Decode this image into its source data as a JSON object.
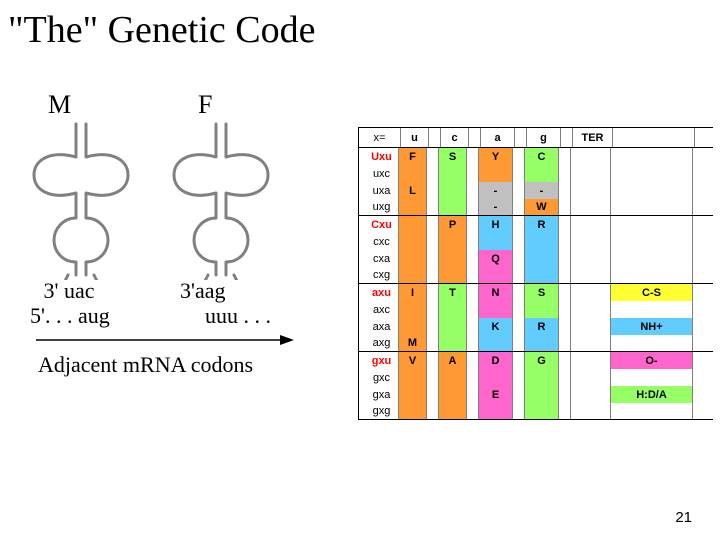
{
  "title": "\"The\" Genetic Code",
  "page_number": "21",
  "left": {
    "label_M": "M",
    "label_F": "F",
    "anticodon1_line1": " 3' uac",
    "anticodon1_line2": "5'. . . aug",
    "anticodon2_line1": "3'aag",
    "anticodon2_line2": "uuu . . .",
    "caption": "Adjacent mRNA codons",
    "trna_stroke": "#808080",
    "trna_stroke_width": 3
  },
  "table": {
    "font_family": "Arial",
    "font_size_pt": 8,
    "border_color": "#000000",
    "cell_border_color": "#7f7f7f",
    "colors": {
      "orange": "#ff9933",
      "yellow": "#feff33",
      "green": "#96ff66",
      "blue": "#63ccff",
      "magenta": "#fe66cb",
      "white": "#ffffff",
      "gray": "#c0c0c0",
      "black_text": "#000000",
      "red_text": "#ff0000"
    },
    "header": {
      "x_eq": "x=",
      "cols": [
        "u",
        "c",
        "a",
        "g"
      ],
      "ter": "TER"
    },
    "groups": [
      {
        "rows": [
          {
            "codon": "Uxu",
            "codon_red": true,
            "codon_bold": true,
            "u": {
              "letter": "F",
              "color": "orange",
              "span": 2
            },
            "c": {
              "letter": "S",
              "color": "green",
              "span": 4
            },
            "a": {
              "letter": "Y",
              "color": "orange",
              "span": 2
            },
            "g": {
              "letter": "C",
              "color": "green",
              "span": 2
            }
          },
          {
            "codon": "uxc"
          },
          {
            "codon": "uxa",
            "a": {
              "letter": "-",
              "color": "gray",
              "span": 1
            },
            "g": {
              "letter": "-",
              "color": "gray",
              "span": 1
            }
          },
          {
            "codon": "uxg",
            "a": {
              "letter": "-",
              "color": "gray",
              "span": 1
            },
            "g": {
              "letter": "W",
              "color": "orange",
              "span": 1
            }
          }
        ],
        "u_group": {
          "letter": "L",
          "color": "orange",
          "start": 2,
          "span": 6
        }
      },
      {
        "rows": [
          {
            "codon": "Cxu",
            "codon_red": true,
            "codon_bold": true,
            "c": {
              "letter": "P",
              "color": "orange",
              "span": 4
            },
            "a": {
              "letter": "H",
              "color": "blue",
              "span": 2
            },
            "g": {
              "letter": "R",
              "color": "blue",
              "span": 6
            }
          },
          {
            "codon": "cxc"
          },
          {
            "codon": "cxa",
            "a": {
              "letter": "Q",
              "color": "magenta",
              "span": 2
            }
          },
          {
            "codon": "cxg"
          }
        ]
      },
      {
        "rows": [
          {
            "codon": "axu",
            "codon_red": true,
            "codon_bold": true,
            "u": {
              "letter": "I",
              "color": "orange",
              "span": 3
            },
            "c": {
              "letter": "T",
              "color": "green",
              "span": 4
            },
            "a": {
              "letter": "N",
              "color": "magenta",
              "span": 2
            },
            "g": {
              "letter": "S",
              "color": "green",
              "span": 2
            },
            "side": {
              "text": "C-S",
              "color": "yellow"
            }
          },
          {
            "codon": "axc"
          },
          {
            "codon": "axa",
            "a": {
              "letter": "K",
              "color": "blue",
              "span": 2
            },
            "g": {
              "letter": "R",
              "color": "blue",
              "span": 2
            },
            "side": {
              "text": "NH+",
              "color": "blue"
            }
          },
          {
            "codon": "axg",
            "u": {
              "letter": "M",
              "color": "orange",
              "span": 1,
              "bold": true
            }
          }
        ]
      },
      {
        "rows": [
          {
            "codon": "gxu",
            "codon_red": true,
            "codon_bold": true,
            "u": {
              "letter": "V",
              "color": "orange",
              "span": 4
            },
            "c": {
              "letter": "A",
              "color": "orange",
              "span": 4
            },
            "a": {
              "letter": "D",
              "color": "magenta",
              "span": 2
            },
            "g": {
              "letter": "G",
              "color": "green",
              "span": 4
            },
            "side": {
              "text": "O-",
              "color": "magenta"
            }
          },
          {
            "codon": "gxc"
          },
          {
            "codon": "gxa",
            "a": {
              "letter": "E",
              "color": "magenta",
              "span": 2
            },
            "side": {
              "text": "H:D/A",
              "color": "green"
            }
          },
          {
            "codon": "gxg"
          }
        ]
      }
    ]
  }
}
